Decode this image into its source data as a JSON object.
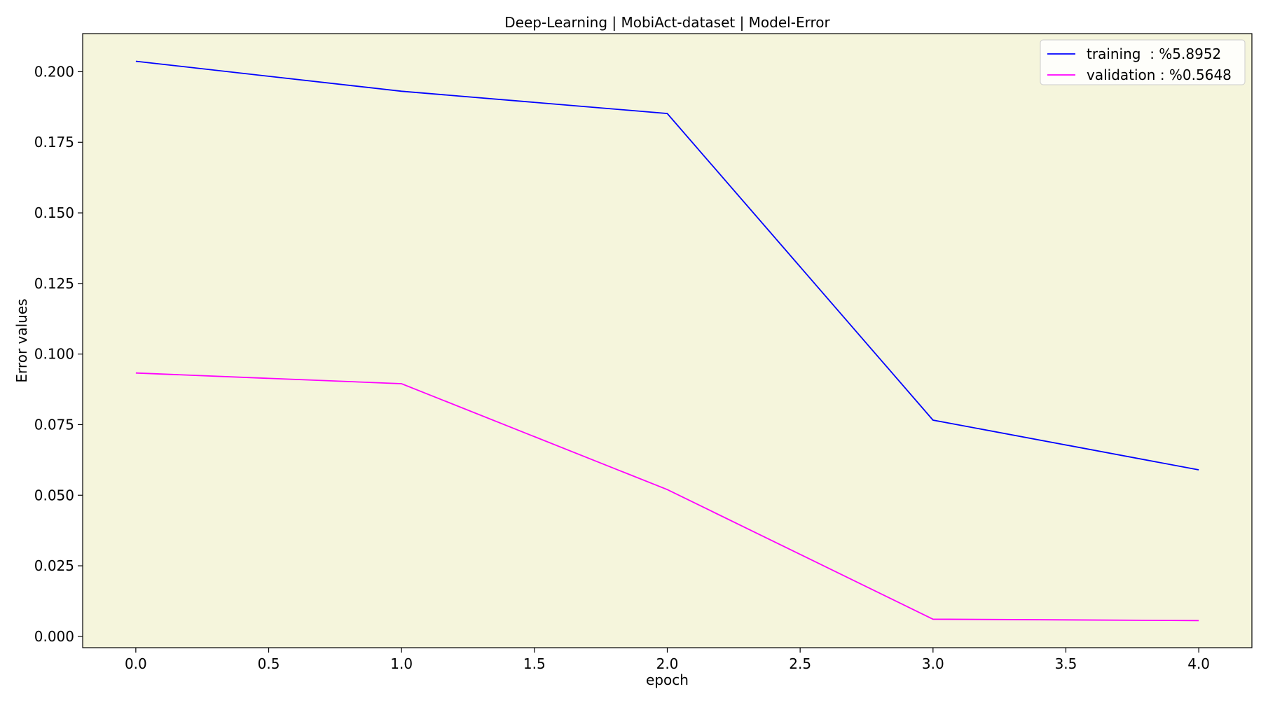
{
  "chart_data": {
    "type": "line",
    "title": "Deep-Learning | MobiAct-dataset  | Model-Error",
    "xlabel": "epoch",
    "ylabel": "Error values",
    "x": [
      0,
      1,
      2,
      3,
      4
    ],
    "xlim": [
      -0.2,
      4.2
    ],
    "ylim": [
      -0.004,
      0.2135
    ],
    "x_ticks": [
      "0.0",
      "0.5",
      "1.0",
      "1.5",
      "2.0",
      "2.5",
      "3.0",
      "3.5",
      "4.0"
    ],
    "x_tick_values": [
      0.0,
      0.5,
      1.0,
      1.5,
      2.0,
      2.5,
      3.0,
      3.5,
      4.0
    ],
    "y_ticks": [
      "0.000",
      "0.025",
      "0.050",
      "0.075",
      "0.100",
      "0.125",
      "0.150",
      "0.175",
      "0.200"
    ],
    "y_tick_values": [
      0.0,
      0.025,
      0.05,
      0.075,
      0.1,
      0.125,
      0.15,
      0.175,
      0.2
    ],
    "grid": false,
    "legend_position": "top-right",
    "plot_background": "#f5f5dc",
    "series": [
      {
        "name": "training  : %5.8952",
        "color": "#0000ff",
        "values": [
          0.2037,
          0.1931,
          0.1852,
          0.0766,
          0.059
        ]
      },
      {
        "name": "validation : %0.5648",
        "color": "#ff00ff",
        "values": [
          0.0933,
          0.0895,
          0.052,
          0.0061,
          0.0056
        ]
      }
    ]
  }
}
